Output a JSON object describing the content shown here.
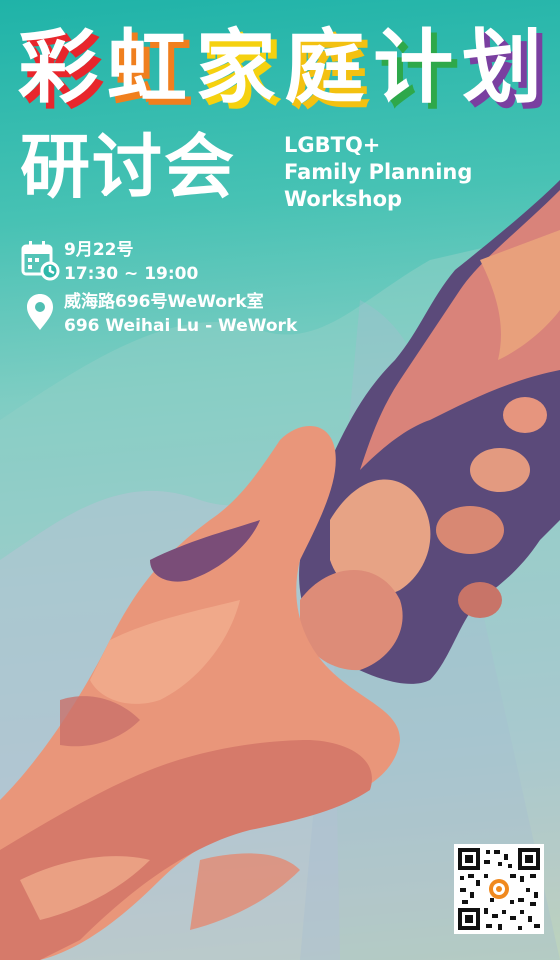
{
  "poster": {
    "title_chars": [
      {
        "char": "彩",
        "shadow": "#e8262c"
      },
      {
        "char": "虹",
        "shadow": "#f07f1e"
      },
      {
        "char": "家",
        "shadow": "#f5d10f"
      },
      {
        "char": "庭",
        "shadow": "#f3c111"
      },
      {
        "char": "计",
        "shadow": "#2ea84a"
      },
      {
        "char": "划",
        "shadow": "#7a3fa0"
      }
    ],
    "subtitle": "研讨会",
    "english_title": [
      "LGBTQ+",
      "Family Planning",
      "Workshop"
    ],
    "date": "9月22号",
    "time": "17:30 ~ 19:00",
    "venue_cn": "威海路696号WeWork室",
    "venue_en": "696 Weihai Lu - WeWork",
    "icons": [
      "calendar-clock-icon",
      "location-pin-icon"
    ],
    "colors": {
      "text": "#ffffff",
      "teal": "#1fb3a8",
      "hand": "#e9967a",
      "shadow_hand": "#5b4a7a"
    }
  }
}
